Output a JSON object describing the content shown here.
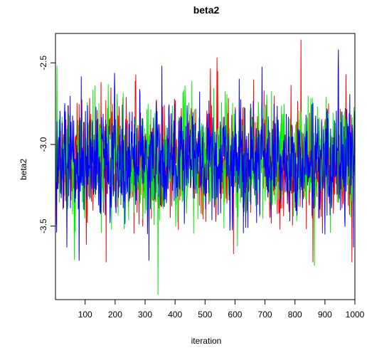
{
  "chart_data": {
    "type": "line",
    "title": "beta2",
    "xlabel": "iteration",
    "ylabel": "beta2",
    "xlim": [
      1,
      1000
    ],
    "ylim": [
      -3.95,
      -2.32
    ],
    "x_ticks": [
      100,
      200,
      300,
      400,
      500,
      600,
      700,
      800,
      900,
      1000
    ],
    "x_tick_labels": [
      "100",
      "200",
      "300",
      "400",
      "500",
      "600",
      "700",
      "800",
      "900",
      "1000"
    ],
    "y_ticks": [
      -3.5,
      -3.0,
      -2.5
    ],
    "y_tick_labels": [
      "-3.5",
      "-3.0",
      "-2.5"
    ],
    "grid": false,
    "legend": "none",
    "series": [
      {
        "color": "#ff0000",
        "mean": -3.1,
        "sd": 0.17,
        "seed": 11,
        "extremes": [
          [
            820,
            -2.36
          ],
          [
            990,
            -3.72
          ],
          [
            170,
            -3.72
          ],
          [
            860,
            -3.72
          ]
        ]
      },
      {
        "color": "#00ee00",
        "mean": -3.1,
        "sd": 0.17,
        "seed": 29,
        "extremes": [
          [
            343,
            -3.92
          ],
          [
            6,
            -2.52
          ],
          [
            865,
            -3.74
          ],
          [
            80,
            -3.66
          ]
        ]
      },
      {
        "color": "#0000ff",
        "mean": -3.1,
        "sd": 0.17,
        "seed": 47,
        "extremes": [
          [
            945,
            -2.42
          ],
          [
            313,
            -3.71
          ],
          [
            80,
            -3.71
          ],
          [
            356,
            -2.52
          ]
        ]
      }
    ]
  }
}
